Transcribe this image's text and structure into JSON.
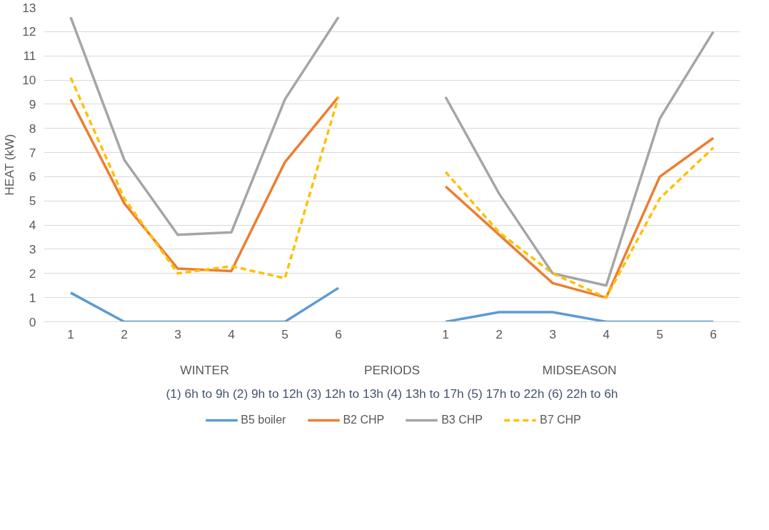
{
  "chart_data": {
    "type": "line",
    "xlabel": "PERIODS",
    "ylabel": "HEAT (kW)",
    "categories": [
      "1",
      "2",
      "3",
      "4",
      "5",
      "6",
      null,
      "1",
      "2",
      "3",
      "4",
      "5",
      "6"
    ],
    "series": [
      {
        "name": "B5 boiler",
        "color": "#5b9bd5",
        "line_style": "solid",
        "values": [
          1.2,
          0,
          0,
          0,
          0,
          1.4,
          null,
          0,
          0.4,
          0.4,
          0,
          0,
          0
        ]
      },
      {
        "name": "B2 CHP",
        "color": "#ed7d31",
        "line_style": "solid",
        "values": [
          9.2,
          4.9,
          2.2,
          2.1,
          6.6,
          9.3,
          null,
          5.6,
          3.6,
          1.6,
          1.0,
          6.0,
          7.6
        ]
      },
      {
        "name": "B3 CHP",
        "color": "#a5a5a5",
        "line_style": "solid",
        "values": [
          12.6,
          6.7,
          3.6,
          3.7,
          9.2,
          12.6,
          null,
          9.3,
          5.3,
          2.0,
          1.5,
          8.4,
          12.0
        ]
      },
      {
        "name": "B7 CHP",
        "color": "#ffc000",
        "line_style": "dashed",
        "values": [
          10.1,
          5.1,
          2.0,
          2.3,
          1.8,
          9.3,
          null,
          6.2,
          3.7,
          2.0,
          1.0,
          5.1,
          7.2
        ]
      }
    ],
    "ylim": [
      0,
      13
    ],
    "yticks": [
      0,
      1,
      2,
      3,
      4,
      5,
      6,
      7,
      8,
      9,
      10,
      11,
      12,
      13
    ],
    "grid": "y",
    "legend": "bottom",
    "marker": "none",
    "annotations": [
      "WINTER",
      "MIDSEASON",
      "(1) 6h to 9h (2) 9h to 12h (3) 12h to 13h (4) 13h to 17h (5) 17h to 22h (6) 22h to 6h"
    ]
  }
}
